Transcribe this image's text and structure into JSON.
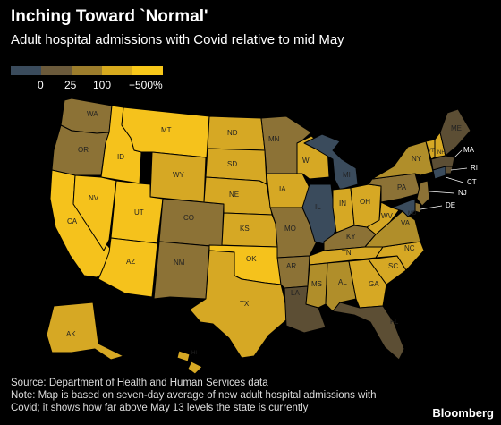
{
  "title": "Inching Toward `Normal'",
  "subtitle": "Adult hospital admissions with Covid relative to mid May",
  "legend": {
    "colors": [
      "#3a4b5c",
      "#6b5a3b",
      "#9c7d2c",
      "#d7aa1e",
      "#f8c81a"
    ],
    "labels": [
      "0",
      "25",
      "100",
      "+500%"
    ]
  },
  "colors": {
    "c0": "#3a4b5c",
    "c1": "#5c4e34",
    "c2": "#8c7236",
    "c3": "#b08e2a",
    "c4": "#d6a824",
    "c5": "#f5c21c",
    "background": "#000000"
  },
  "states": {
    "WA": "WA",
    "OR": "OR",
    "CA": "CA",
    "ID": "ID",
    "NV": "NV",
    "MT": "MT",
    "WY": "WY",
    "UT": "UT",
    "AZ": "AZ",
    "CO": "CO",
    "NM": "NM",
    "ND": "ND",
    "SD": "SD",
    "NE": "NE",
    "KS": "KS",
    "OK": "OK",
    "TX": "TX",
    "MN": "MN",
    "IA": "IA",
    "MO": "MO",
    "AR": "AR",
    "LA": "LA",
    "WI": "WI",
    "IL": "IL",
    "MI": "MI",
    "IN": "IN",
    "OH": "OH",
    "KY": "KY",
    "TN": "TN",
    "MS": "MS",
    "AL": "AL",
    "GA": "GA",
    "FL": "FL",
    "SC": "SC",
    "NC": "NC",
    "VA": "VA",
    "WV": "WV",
    "PA": "PA",
    "NY": "NY",
    "VT": "VT",
    "NH": "NH",
    "ME": "ME",
    "MA": "MA",
    "RI": "RI",
    "CT": "CT",
    "NJ": "NJ",
    "DE": "DE",
    "MD": "MD",
    "AK": "AK",
    "HI": "HI"
  },
  "source": "Source: Department of Health and Human Services data",
  "note_line1": "Note: Map is based on seven-day average of new adult hospital admissions with",
  "note_line2": "Covid; it shows how far above May 13 levels the state is currently",
  "brand": "Bloomberg"
}
